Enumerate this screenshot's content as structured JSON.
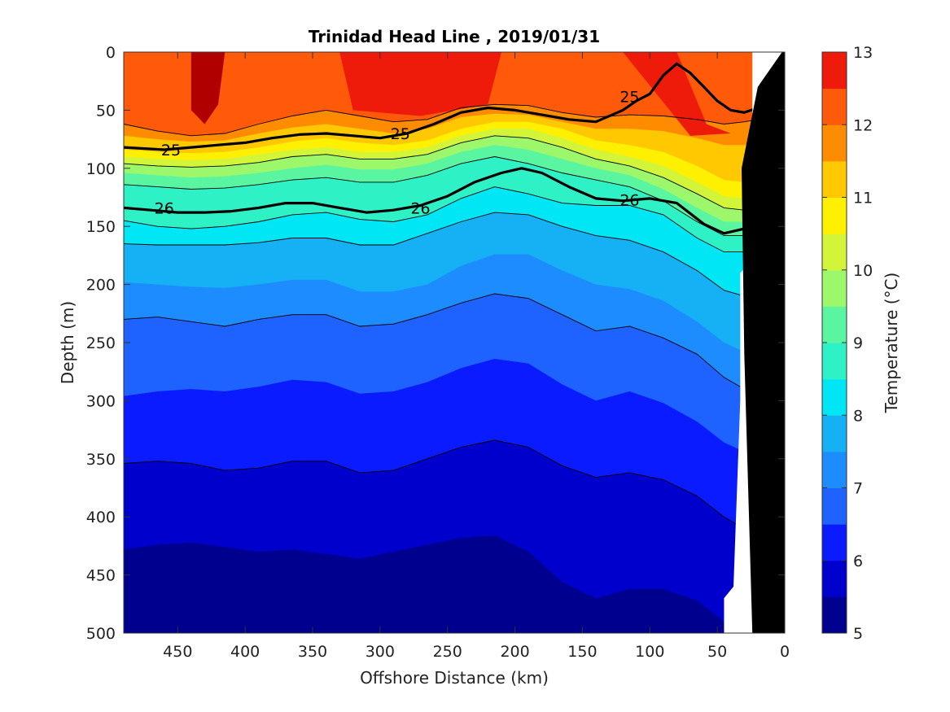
{
  "chart_data": {
    "type": "heatmap",
    "subtype": "filled-contour",
    "title": "Trinidad Head Line , 2019/01/31",
    "xlabel": "Offshore Distance (km)",
    "ylabel": "Depth (m)",
    "xlim": [
      490,
      0
    ],
    "ylim": [
      0,
      500
    ],
    "x_reversed": true,
    "y_reversed": true,
    "x_ticks": [
      450,
      400,
      350,
      300,
      250,
      200,
      150,
      100,
      50,
      0
    ],
    "y_ticks": [
      0,
      50,
      100,
      150,
      200,
      250,
      300,
      350,
      400,
      450,
      500
    ],
    "colorbar": {
      "label": "Temperature (°C)",
      "ticks": [
        5,
        6,
        7,
        8,
        9,
        10,
        11,
        12,
        13
      ],
      "levels": [
        5,
        5.5,
        6,
        6.5,
        7,
        7.5,
        8,
        8.5,
        9,
        9.5,
        10,
        10.5,
        11,
        11.5,
        12,
        12.5,
        13
      ],
      "colors": [
        "#00008f",
        "#0000cc",
        "#0a1cff",
        "#1e62ff",
        "#1c8cff",
        "#16b0f5",
        "#00e6f4",
        "#2ef2c6",
        "#5af5a0",
        "#9cf76a",
        "#d2f53a",
        "#fff000",
        "#ffc800",
        "#ff8c00",
        "#ff5a0a",
        "#ee1a0a",
        "#b00000"
      ]
    },
    "temperature_bands": [
      {
        "t_low": 12.5,
        "t_high": 13,
        "depth_top": [
          0,
          0,
          0,
          0,
          0,
          0,
          0,
          0,
          0,
          0,
          0,
          0,
          0,
          0,
          0,
          0,
          0,
          0,
          0,
          0,
          0
        ],
        "depth_bottom": [
          0,
          0,
          0,
          0,
          0,
          0,
          0,
          55,
          55,
          0,
          0,
          0,
          0,
          0,
          0,
          0,
          0,
          0,
          0,
          0,
          0
        ]
      },
      {
        "distances_km": [
          490,
          465,
          440,
          415,
          390,
          365,
          340,
          315,
          290,
          265,
          240,
          215,
          190,
          165,
          140,
          115,
          90,
          65,
          45,
          30,
          20
        ]
      }
    ],
    "isotherms_depth_m": {
      "distances_km": [
        490,
        465,
        440,
        415,
        390,
        365,
        340,
        315,
        290,
        265,
        240,
        215,
        190,
        165,
        140,
        115,
        90,
        65,
        45,
        30,
        20
      ],
      "t12": [
        62,
        68,
        72,
        70,
        62,
        55,
        50,
        55,
        60,
        58,
        48,
        45,
        46,
        52,
        56,
        54,
        55,
        58,
        62,
        60,
        58
      ],
      "t11.5": [
        72,
        75,
        77,
        76,
        70,
        65,
        62,
        66,
        70,
        66,
        56,
        53,
        54,
        60,
        66,
        66,
        68,
        74,
        80,
        80,
        78
      ],
      "t11": [
        84,
        86,
        87,
        86,
        82,
        77,
        74,
        78,
        80,
        76,
        66,
        60,
        60,
        66,
        76,
        80,
        86,
        98,
        110,
        112,
        110
      ],
      "t10.5": [
        90,
        92,
        93,
        92,
        88,
        84,
        82,
        86,
        86,
        82,
        72,
        66,
        66,
        74,
        84,
        90,
        98,
        112,
        124,
        126,
        122
      ],
      "t10": [
        96,
        98,
        99,
        98,
        95,
        90,
        88,
        92,
        92,
        88,
        78,
        72,
        74,
        82,
        92,
        98,
        108,
        122,
        134,
        136,
        130
      ],
      "t9.5": [
        104,
        106,
        108,
        107,
        104,
        100,
        97,
        101,
        101,
        96,
        86,
        80,
        84,
        92,
        100,
        106,
        118,
        134,
        146,
        146,
        140
      ],
      "t9": [
        114,
        116,
        118,
        117,
        114,
        110,
        108,
        112,
        112,
        106,
        96,
        90,
        96,
        104,
        110,
        116,
        128,
        146,
        158,
        158,
        150
      ],
      "t8.5": [
        145,
        150,
        152,
        150,
        146,
        140,
        138,
        144,
        146,
        140,
        126,
        116,
        122,
        130,
        132,
        132,
        140,
        160,
        172,
        172,
        164
      ],
      "t8": [
        165,
        166,
        166,
        166,
        164,
        160,
        160,
        166,
        166,
        156,
        146,
        138,
        140,
        150,
        158,
        162,
        172,
        188,
        205,
        210,
        200
      ],
      "t7.5": [
        198,
        200,
        202,
        203,
        200,
        196,
        196,
        206,
        206,
        200,
        184,
        174,
        174,
        188,
        200,
        204,
        214,
        232,
        250,
        258,
        250
      ],
      "t7": [
        230,
        228,
        232,
        236,
        230,
        226,
        226,
        236,
        234,
        226,
        216,
        208,
        212,
        226,
        240,
        236,
        246,
        260,
        280,
        290,
        282
      ],
      "t6.5": [
        296,
        292,
        290,
        292,
        288,
        282,
        284,
        294,
        292,
        284,
        272,
        264,
        268,
        286,
        300,
        292,
        302,
        318,
        336,
        344,
        334
      ],
      "t6": [
        354,
        352,
        354,
        360,
        358,
        352,
        352,
        362,
        360,
        350,
        340,
        334,
        340,
        356,
        366,
        362,
        368,
        382,
        400,
        410,
        400
      ],
      "t5.5": [
        428,
        424,
        422,
        426,
        430,
        428,
        432,
        436,
        430,
        424,
        418,
        416,
        430,
        456,
        470,
        462,
        462,
        472,
        490,
        500,
        500
      ]
    },
    "density_contours": [
      {
        "label": "25",
        "distances_km": [
          490,
          460,
          440,
          420,
          400,
          380,
          360,
          340,
          320,
          300,
          280,
          260,
          240,
          220,
          200,
          180,
          160,
          140,
          120,
          110,
          100,
          90,
          80,
          70,
          60,
          50,
          40,
          30,
          20
        ],
        "depth_m": [
          82,
          84,
          82,
          80,
          78,
          74,
          71,
          70,
          72,
          74,
          70,
          62,
          52,
          48,
          50,
          54,
          58,
          60,
          50,
          42,
          36,
          20,
          10,
          18,
          30,
          42,
          50,
          52,
          48
        ]
      },
      {
        "label": "26",
        "distances_km": [
          490,
          470,
          450,
          430,
          410,
          390,
          370,
          350,
          330,
          310,
          290,
          270,
          250,
          230,
          210,
          195,
          180,
          160,
          140,
          120,
          100,
          80,
          60,
          45,
          30,
          20
        ],
        "depth_m": [
          134,
          136,
          138,
          138,
          137,
          134,
          130,
          130,
          134,
          138,
          136,
          132,
          124,
          112,
          104,
          100,
          104,
          116,
          126,
          128,
          126,
          130,
          148,
          156,
          152,
          140
        ]
      }
    ],
    "coast_line_km": [
      [
        24,
        500
      ],
      [
        30,
        260
      ],
      [
        32,
        100
      ],
      [
        20,
        30
      ],
      [
        2,
        0
      ]
    ],
    "legend": "none",
    "grid": false
  }
}
